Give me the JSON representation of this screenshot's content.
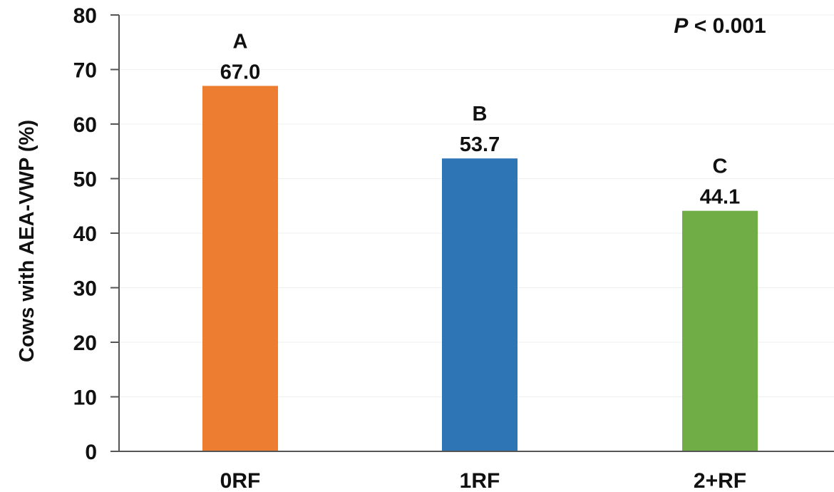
{
  "chart_data": {
    "type": "bar",
    "categories": [
      "0RF",
      "1RF",
      "2+RF"
    ],
    "values": [
      67.0,
      53.7,
      44.1
    ],
    "value_labels": [
      "67.0",
      "53.7",
      "44.1"
    ],
    "group_letters": [
      "A",
      "B",
      "C"
    ],
    "colors": [
      "#ED7D31",
      "#2E75B6",
      "#70AD47"
    ],
    "ylabel": "Cows with AEA-VWP (%)",
    "xlabel": "",
    "ylim": [
      0,
      80
    ],
    "yticks": [
      0,
      10,
      20,
      30,
      40,
      50,
      60,
      70,
      80
    ],
    "annotation": {
      "italic": "P",
      "rest": " < 0.001"
    },
    "grid": true,
    "legend": "none"
  }
}
